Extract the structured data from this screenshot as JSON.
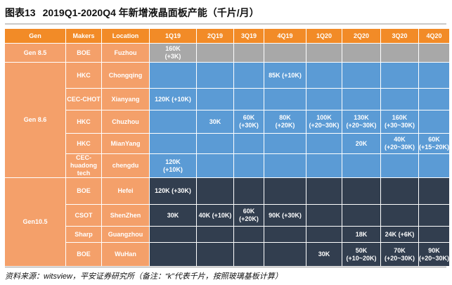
{
  "figure": {
    "number": "图表13",
    "title": "2019Q1-2020Q4 年新增液晶面板产能（千片/月）"
  },
  "headers": {
    "gen": "Gen",
    "makers": "Makers",
    "location": "Location",
    "quarters": [
      "1Q19",
      "2Q19",
      "3Q19",
      "4Q19",
      "1Q20",
      "2Q20",
      "3Q20",
      "4Q20"
    ]
  },
  "groups": [
    {
      "gen": "Gen 8.5",
      "rows": [
        {
          "maker": "BOE",
          "location": "Fuzhou",
          "cells": [
            "160K\n(+3K)",
            "",
            "",
            "",
            "",
            "",
            "",
            ""
          ]
        }
      ]
    },
    {
      "gen": "Gen 8.6",
      "rows": [
        {
          "maker": "HKC",
          "location": "Chongqing",
          "cells": [
            "",
            "",
            "",
            "85K (+10K)",
            "",
            "",
            "",
            ""
          ]
        },
        {
          "maker": "CEC-CHOT",
          "location": "Xianyang",
          "cells": [
            "120K (+10K)",
            "",
            "",
            "",
            "",
            "",
            "",
            ""
          ]
        },
        {
          "maker": "HKC",
          "location": "Chuzhou",
          "cells": [
            "",
            "30K",
            "60K\n(+30K)",
            "80K\n(+20K)",
            "100K\n(+20~30K)",
            "130K\n(+20~30K)",
            "160K\n(+30~30K)",
            ""
          ]
        },
        {
          "maker": "HKC",
          "location": "MianYang",
          "cells": [
            "",
            "",
            "",
            "",
            "",
            "20K",
            "40K\n(+20~30K)",
            "60K\n(+15~20K)"
          ]
        },
        {
          "maker": "CEC-huadong tech",
          "location": "chengdu",
          "cells": [
            "120K\n(+10K)",
            "",
            "",
            "",
            "",
            "",
            "",
            ""
          ]
        }
      ]
    },
    {
      "gen": "Gen10.5",
      "rows": [
        {
          "maker": "BOE",
          "location": "Hefei",
          "cells": [
            "120K (+30K)",
            "",
            "",
            "",
            "",
            "",
            "",
            ""
          ]
        },
        {
          "maker": "CSOT",
          "location": "ShenZhen",
          "cells": [
            "30K",
            "40K (+10K)",
            "60K\n(+20K)",
            "90K (+30K)",
            "",
            "",
            "",
            ""
          ]
        },
        {
          "maker": "Sharp",
          "location": "Guangzhou",
          "cells": [
            "",
            "",
            "",
            "",
            "",
            "18K",
            "24K (+6K)",
            ""
          ]
        },
        {
          "maker": "BOE",
          "location": "WuHan",
          "cells": [
            "",
            "",
            "",
            "",
            "30K",
            "50K\n(+10~20K)",
            "70K\n(+20~30K)",
            "90K\n(+20~30K)"
          ]
        }
      ]
    }
  ],
  "source": "资料来源：witsview，平安证券研究所（备注：“k”代表千片，按照玻璃基板计算）",
  "colors": {
    "header": "#f28b27",
    "label": "#f4a06a",
    "gen85": "#a8a8a8",
    "gen86": "#5b9bd5",
    "gen105": "#323e4f"
  }
}
